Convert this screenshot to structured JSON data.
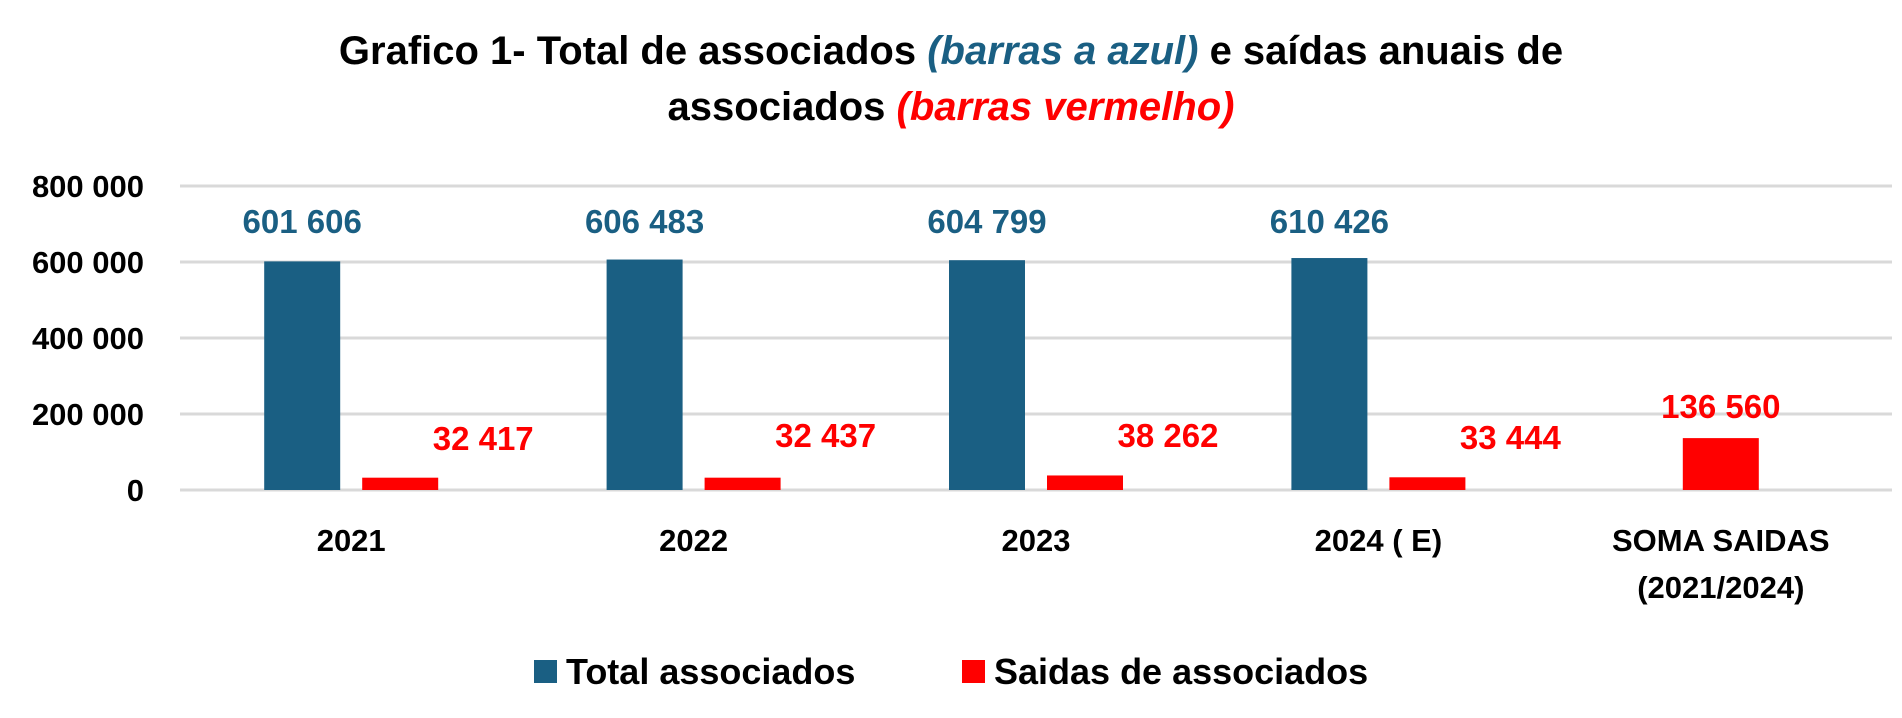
{
  "chart_data": {
    "type": "bar",
    "title_parts": [
      {
        "text": "Grafico 1- Total de associados ",
        "style": "normal"
      },
      {
        "text": "(barras a azul)",
        "style": "blue"
      },
      {
        "text": " e saídas anuais de",
        "style": "normal"
      },
      {
        "text": "associados ",
        "style": "normal"
      },
      {
        "text": "(barras vermelho)",
        "style": "red"
      }
    ],
    "categories": [
      "2021",
      "2022",
      "2023",
      "2024 ( E)",
      "SOMA SAIDAS\n(2021/2024)"
    ],
    "category_lines": [
      [
        "2021"
      ],
      [
        "2022"
      ],
      [
        "2023"
      ],
      [
        "2024 ( E)"
      ],
      [
        "SOMA SAIDAS",
        "(2021/2024)"
      ]
    ],
    "series": [
      {
        "name": "Total associados",
        "color": "#1a5f83",
        "values": [
          601606,
          606483,
          604799,
          610426,
          null
        ],
        "labels": [
          "601 606",
          "606 483",
          "604 799",
          "610 426",
          ""
        ]
      },
      {
        "name": "Saidas de associados",
        "color": "#ff0000",
        "values": [
          32417,
          32437,
          38262,
          33444,
          136560
        ],
        "labels": [
          "32 417",
          "32 437",
          "38 262",
          "33 444",
          "136 560"
        ]
      }
    ],
    "yticks": [
      0,
      200000,
      400000,
      600000,
      800000
    ],
    "ytick_labels": [
      "0",
      "200 000",
      "400 000",
      "600 000",
      "800 000"
    ],
    "ylim": [
      0,
      800000
    ],
    "grid": true,
    "legend": "bottom-center",
    "xlabel": "",
    "ylabel": ""
  }
}
